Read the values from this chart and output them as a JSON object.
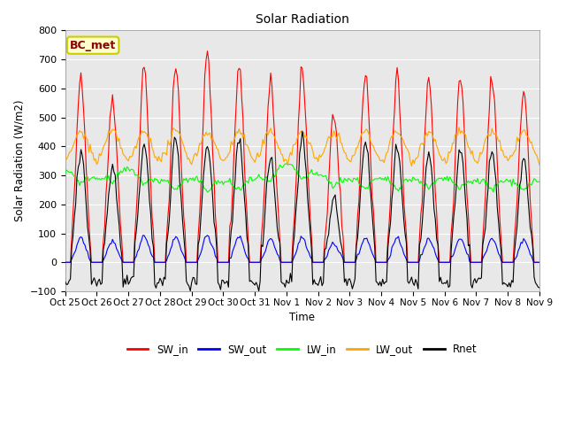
{
  "title": "Solar Radiation",
  "ylabel": "Solar Radiation (W/m2)",
  "xlabel": "Time",
  "ylim": [
    -100,
    800
  ],
  "xtick_labels": [
    "Oct 25",
    "Oct 26",
    "Oct 27",
    "Oct 28",
    "Oct 29",
    "Oct 30",
    "Oct 31",
    "Nov 1",
    "Nov 2",
    "Nov 3",
    "Nov 4",
    "Nov 5",
    "Nov 6",
    "Nov 7",
    "Nov 8",
    "Nov 9"
  ],
  "xtick_positions": [
    0,
    24,
    48,
    72,
    96,
    120,
    144,
    168,
    192,
    216,
    240,
    264,
    288,
    312,
    336,
    360
  ],
  "grid_color": "#ffffff",
  "bg_color": "#e8e8e8",
  "fig_color": "#ffffff",
  "series": {
    "SW_in": {
      "color": "#ff0000",
      "lw": 0.8
    },
    "SW_out": {
      "color": "#0000ff",
      "lw": 0.8
    },
    "LW_in": {
      "color": "#00ff00",
      "lw": 0.8
    },
    "LW_out": {
      "color": "#ffa500",
      "lw": 0.8
    },
    "Rnet": {
      "color": "#000000",
      "lw": 0.8
    }
  },
  "annotation_text": "BC_met",
  "annotation_color": "#8b0000",
  "annotation_bg": "#ffffcc",
  "annotation_border": "#cccc00",
  "legend_labels": [
    "SW_in",
    "SW_out",
    "LW_in",
    "LW_out",
    "Rnet"
  ],
  "legend_colors": [
    "#ff0000",
    "#0000ff",
    "#00ff00",
    "#ffa500",
    "#000000"
  ]
}
